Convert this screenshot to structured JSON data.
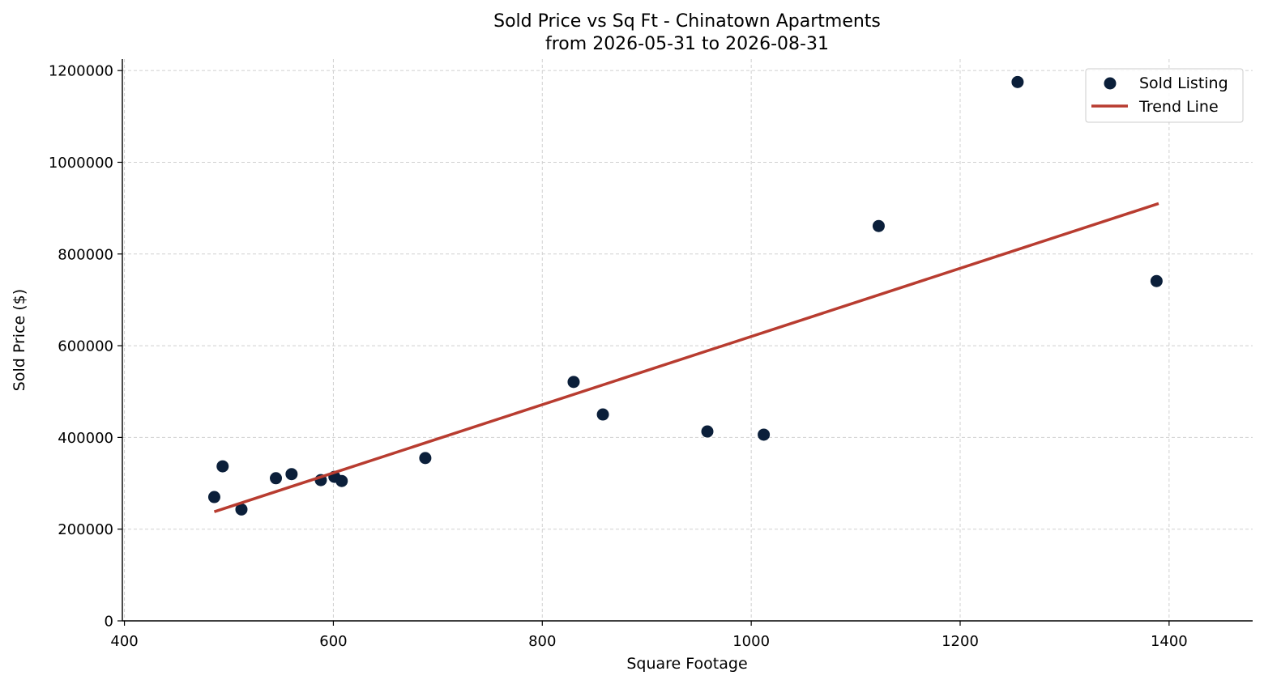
{
  "chart_data": {
    "type": "scatter",
    "title": "Sold Price vs Sq Ft - Chinatown Apartments",
    "subtitle": "from 2026-05-31 to 2026-08-31",
    "xlabel": "Square Footage",
    "ylabel": "Sold Price ($)",
    "xlim": [
      398,
      1480
    ],
    "ylim": [
      0,
      1225000
    ],
    "xticks": [
      400,
      600,
      800,
      1000,
      1200,
      1400
    ],
    "yticks": [
      0,
      200000,
      400000,
      600000,
      800000,
      1000000,
      1200000
    ],
    "grid": true,
    "legend_placement": "top-right",
    "series": [
      {
        "name": "Sold Listing",
        "kind": "scatter",
        "color": "#0b1f3a",
        "points": [
          {
            "x": 486,
            "y": 270000
          },
          {
            "x": 494,
            "y": 337000
          },
          {
            "x": 512,
            "y": 243000
          },
          {
            "x": 545,
            "y": 311000
          },
          {
            "x": 560,
            "y": 320000
          },
          {
            "x": 588,
            "y": 307000
          },
          {
            "x": 601,
            "y": 314000
          },
          {
            "x": 608,
            "y": 305000
          },
          {
            "x": 688,
            "y": 355000
          },
          {
            "x": 830,
            "y": 521000
          },
          {
            "x": 858,
            "y": 450000
          },
          {
            "x": 958,
            "y": 413000
          },
          {
            "x": 1012,
            "y": 406000
          },
          {
            "x": 1122,
            "y": 861000
          },
          {
            "x": 1255,
            "y": 1175000
          },
          {
            "x": 1388,
            "y": 741000
          }
        ]
      },
      {
        "name": "Trend Line",
        "kind": "line",
        "color": "#b83c30",
        "points": [
          {
            "x": 486,
            "y": 238000
          },
          {
            "x": 1390,
            "y": 910000
          }
        ]
      }
    ]
  }
}
